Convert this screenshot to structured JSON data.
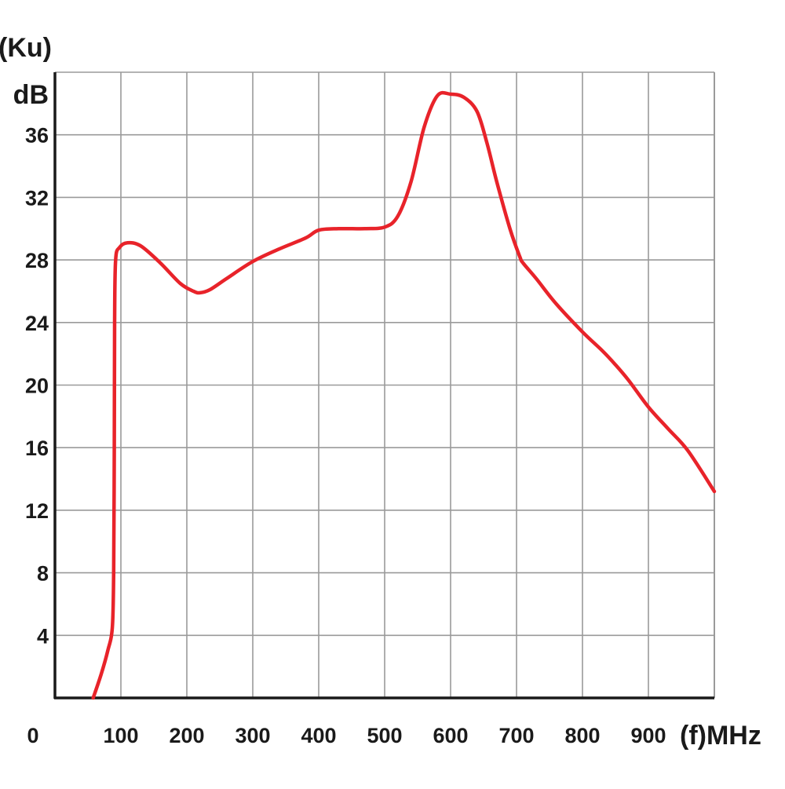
{
  "chart_data": {
    "type": "line",
    "title": "",
    "ylabel_top": "(Ku)",
    "ylabel_unit": "dB",
    "xlabel": "(f)MHz",
    "origin_label": "0",
    "xlim": [
      0,
      1000
    ],
    "ylim": [
      0,
      40
    ],
    "grid": true,
    "line_color": "#e8232a",
    "grid_color": "#9a9a9a",
    "axis_color": "#1a1a1a",
    "x_ticks": [
      100,
      200,
      300,
      400,
      500,
      600,
      700,
      800,
      900,
      1000
    ],
    "x_tick_labels": [
      "100",
      "200",
      "300",
      "400",
      "500",
      "600",
      "700",
      "800",
      "900"
    ],
    "y_ticks": [
      4,
      8,
      12,
      16,
      20,
      24,
      28,
      32,
      36,
      40
    ],
    "y_tick_labels": [
      "4",
      "8",
      "12",
      "16",
      "20",
      "24",
      "28",
      "32",
      "36"
    ],
    "series": [
      {
        "x": [
          58,
          70,
          80,
          87,
          89,
          90,
          90.5,
          92,
          98,
          110,
          130,
          160,
          190,
          210,
          220,
          235,
          260,
          300,
          340,
          380,
          400,
          430,
          470,
          500,
          520,
          540,
          560,
          580,
          600,
          620,
          640,
          655,
          670,
          690,
          705,
          710,
          730,
          760,
          800,
          830,
          850,
          870,
          900,
          930,
          960,
          1000
        ],
        "y": [
          0,
          1.5,
          3.0,
          4.5,
          8,
          16,
          24,
          28.0,
          28.8,
          29.1,
          28.9,
          27.8,
          26.5,
          26.0,
          25.9,
          26.1,
          26.8,
          27.9,
          28.7,
          29.4,
          29.9,
          30.0,
          30.0,
          30.1,
          30.8,
          33.0,
          36.5,
          38.5,
          38.6,
          38.4,
          37.5,
          35.5,
          33.0,
          30.0,
          28.2,
          27.8,
          26.8,
          25.2,
          23.4,
          22.2,
          21.3,
          20.3,
          18.6,
          17.2,
          15.8,
          13.2
        ]
      }
    ]
  }
}
